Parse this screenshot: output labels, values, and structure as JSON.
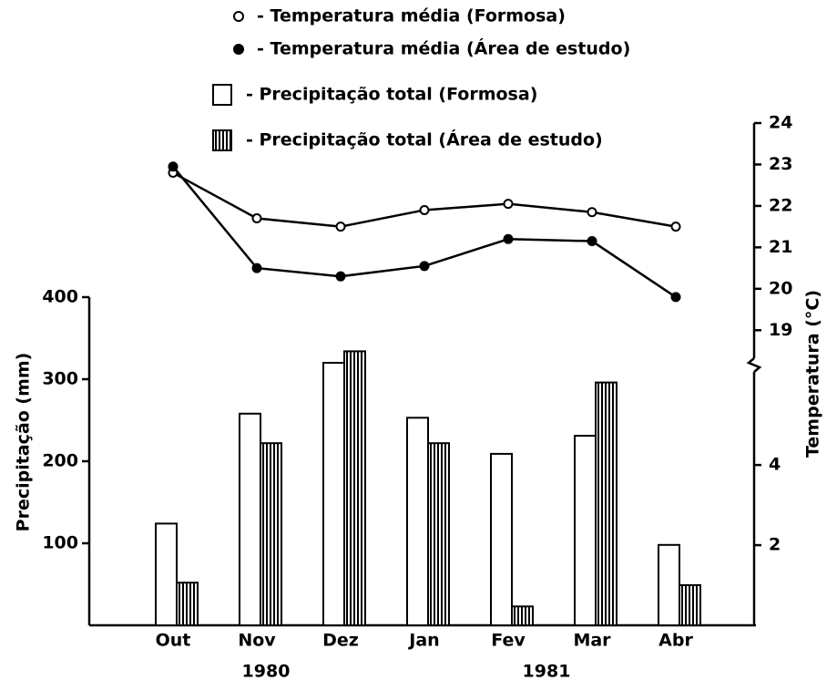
{
  "chart_data": {
    "type": "bar_line",
    "categories": [
      "Out",
      "Nov",
      "Dez",
      "Jan",
      "Fev",
      "Mar",
      "Abr"
    ],
    "year_labels": [
      "1980",
      "1981"
    ],
    "y_label": "Precipitação (mm)",
    "y2_label": "Temperatura (°C)",
    "ylim": [
      0,
      400
    ],
    "yticks": [
      100,
      200,
      300,
      400
    ],
    "y2lim": [
      18.5,
      24
    ],
    "y2ticks": [
      19,
      20,
      21,
      22,
      23,
      24
    ],
    "y2_lower": {
      "ylim": [
        0,
        6.3
      ],
      "yticks": [
        2,
        4
      ]
    },
    "series": [
      {
        "name": "- Temperatura média (Formosa)",
        "kind": "line",
        "marker": "open",
        "axis": "y2",
        "color": "#000000",
        "values": [
          22.8,
          21.7,
          21.5,
          21.9,
          22.05,
          21.85,
          21.5
        ]
      },
      {
        "name": "- Temperatura média (Área de estudo)",
        "kind": "line",
        "marker": "filled",
        "axis": "y2",
        "color": "#000000",
        "values": [
          22.95,
          20.5,
          20.3,
          20.55,
          21.2,
          21.15,
          19.8
        ]
      },
      {
        "name": "- Precipitação total (Formosa)",
        "kind": "bar",
        "pattern": "plain",
        "color": "#000000",
        "values": [
          124,
          258,
          320,
          253,
          209,
          231,
          98
        ]
      },
      {
        "name": "- Precipitação total (Área de estudo)",
        "kind": "bar",
        "pattern": "hatched",
        "color": "#000000",
        "values": [
          52,
          222,
          334,
          222,
          23,
          296,
          49
        ]
      }
    ]
  }
}
